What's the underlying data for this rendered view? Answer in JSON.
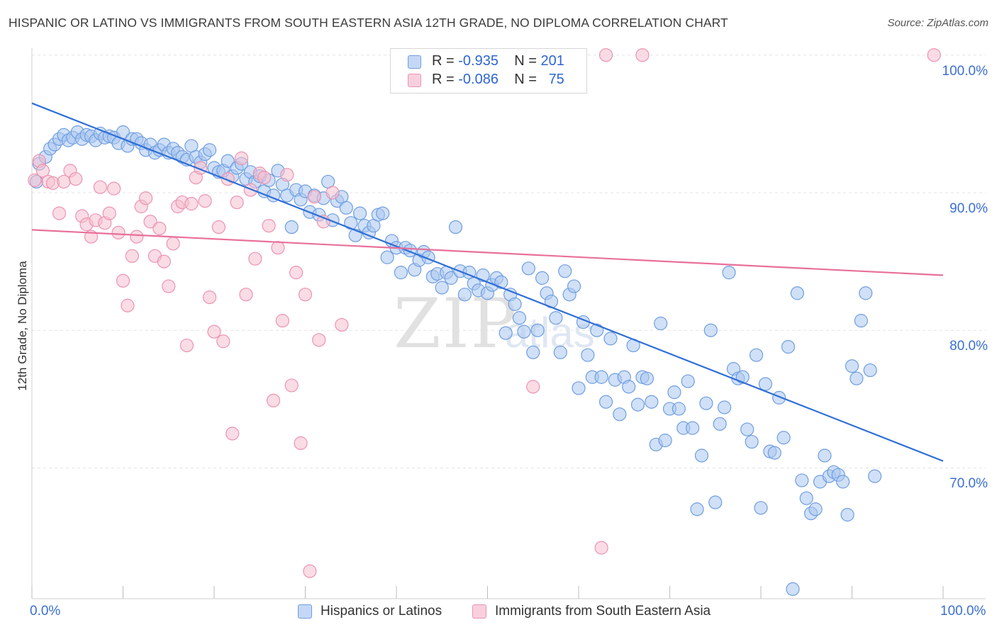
{
  "title": "HISPANIC OR LATINO VS IMMIGRANTS FROM SOUTH EASTERN ASIA 12TH GRADE, NO DIPLOMA CORRELATION CHART",
  "source": "Source: ZipAtlas.com",
  "watermark": "ZIPatlas",
  "legend_top": [
    {
      "r_label": "R =",
      "r_value": "-0.935",
      "n_label": "N =",
      "n_value": "201"
    },
    {
      "r_label": "R =",
      "r_value": "-0.086",
      "n_label": "N =",
      "n_value": "75"
    }
  ],
  "colors": {
    "blue_fill": "#a9c6f0",
    "blue_stroke": "#6f9ee0",
    "blue_line": "#2f6fd6",
    "pink_fill": "#f5bfd0",
    "pink_stroke": "#ec93b0",
    "pink_line": "#e8709a",
    "axis_text": "#3b6fd0",
    "grid": "#e4e4e4"
  },
  "chart_data": {
    "type": "scatter",
    "xlabel": "",
    "ylabel": "12th Grade, No Diploma",
    "x_tick_labels": [
      "0.0%",
      "100.0%"
    ],
    "y_tick_labels": [
      "100.0%",
      "90.0%",
      "80.0%",
      "70.0%"
    ],
    "y_ticks": [
      100,
      90,
      80,
      70
    ],
    "xlim": [
      0,
      100
    ],
    "ylim": [
      60.5,
      100.5
    ],
    "grid": true,
    "legend_position": "bottom",
    "series": [
      {
        "name": "Hispanics or Latinos",
        "color": "#a9c6f0",
        "trend": {
          "x": [
            0,
            100
          ],
          "y": [
            96.5,
            70.5
          ]
        },
        "points": [
          [
            0.5,
            90.8
          ],
          [
            0.8,
            92.1
          ],
          [
            1.5,
            92.6
          ],
          [
            2.0,
            93.2
          ],
          [
            2.5,
            93.5
          ],
          [
            3.0,
            93.9
          ],
          [
            3.5,
            94.2
          ],
          [
            4.0,
            93.8
          ],
          [
            4.5,
            94.0
          ],
          [
            5.0,
            94.4
          ],
          [
            5.5,
            93.9
          ],
          [
            6.0,
            94.2
          ],
          [
            6.5,
            94.1
          ],
          [
            7.0,
            93.8
          ],
          [
            7.5,
            94.3
          ],
          [
            8.0,
            94.0
          ],
          [
            8.5,
            94.1
          ],
          [
            9.0,
            94.0
          ],
          [
            9.5,
            93.6
          ],
          [
            10.0,
            94.4
          ],
          [
            10.5,
            93.4
          ],
          [
            11.0,
            93.9
          ],
          [
            11.5,
            93.9
          ],
          [
            12.0,
            93.6
          ],
          [
            12.5,
            93.1
          ],
          [
            13.0,
            93.5
          ],
          [
            13.5,
            92.9
          ],
          [
            14.0,
            93.1
          ],
          [
            14.5,
            93.5
          ],
          [
            15.0,
            92.9
          ],
          [
            15.5,
            93.2
          ],
          [
            16.0,
            92.9
          ],
          [
            16.5,
            92.6
          ],
          [
            17.0,
            92.4
          ],
          [
            17.5,
            93.4
          ],
          [
            18.0,
            92.6
          ],
          [
            18.5,
            92.2
          ],
          [
            19.0,
            92.8
          ],
          [
            19.5,
            93.1
          ],
          [
            20.0,
            91.8
          ],
          [
            20.5,
            91.5
          ],
          [
            21.0,
            91.6
          ],
          [
            21.5,
            92.3
          ],
          [
            22.0,
            91.2
          ],
          [
            22.5,
            91.8
          ],
          [
            23.0,
            92.1
          ],
          [
            23.5,
            91.0
          ],
          [
            24.0,
            91.5
          ],
          [
            24.5,
            90.8
          ],
          [
            25.0,
            91.2
          ],
          [
            25.5,
            90.1
          ],
          [
            26.0,
            90.9
          ],
          [
            26.5,
            89.8
          ],
          [
            27.0,
            91.6
          ],
          [
            27.5,
            90.6
          ],
          [
            28.0,
            89.8
          ],
          [
            28.5,
            87.5
          ],
          [
            29.0,
            90.2
          ],
          [
            29.5,
            89.5
          ],
          [
            30.0,
            90.1
          ],
          [
            30.5,
            88.6
          ],
          [
            31.0,
            89.8
          ],
          [
            31.5,
            88.4
          ],
          [
            32.0,
            89.6
          ],
          [
            32.5,
            90.8
          ],
          [
            33.0,
            88.0
          ],
          [
            33.5,
            89.4
          ],
          [
            34.0,
            89.7
          ],
          [
            34.5,
            88.9
          ],
          [
            35.0,
            87.8
          ],
          [
            35.5,
            86.9
          ],
          [
            36.0,
            88.5
          ],
          [
            36.5,
            87.6
          ],
          [
            37.0,
            87.1
          ],
          [
            37.5,
            87.6
          ],
          [
            38.0,
            88.4
          ],
          [
            38.5,
            88.5
          ],
          [
            39.0,
            85.3
          ],
          [
            39.5,
            86.5
          ],
          [
            40.0,
            86.0
          ],
          [
            40.5,
            84.2
          ],
          [
            41.0,
            86.0
          ],
          [
            41.5,
            85.8
          ],
          [
            42.0,
            84.4
          ],
          [
            42.5,
            85.1
          ],
          [
            43.0,
            85.7
          ],
          [
            43.5,
            85.3
          ],
          [
            44.0,
            83.9
          ],
          [
            44.5,
            84.1
          ],
          [
            45.0,
            83.1
          ],
          [
            45.5,
            84.2
          ],
          [
            46.0,
            83.8
          ],
          [
            46.5,
            87.5
          ],
          [
            47.0,
            84.3
          ],
          [
            47.5,
            82.6
          ],
          [
            48.0,
            84.2
          ],
          [
            48.5,
            83.4
          ],
          [
            49.0,
            82.9
          ],
          [
            49.5,
            84.0
          ],
          [
            50.0,
            82.7
          ],
          [
            50.5,
            83.3
          ],
          [
            51.0,
            83.8
          ],
          [
            51.5,
            83.5
          ],
          [
            52.0,
            79.8
          ],
          [
            52.5,
            82.6
          ],
          [
            53.0,
            81.9
          ],
          [
            53.5,
            80.9
          ],
          [
            54.0,
            79.9
          ],
          [
            54.5,
            84.5
          ],
          [
            55.0,
            78.4
          ],
          [
            55.5,
            80.0
          ],
          [
            56.0,
            83.8
          ],
          [
            56.5,
            82.7
          ],
          [
            57.0,
            82.1
          ],
          [
            57.5,
            80.9
          ],
          [
            58.0,
            78.4
          ],
          [
            58.5,
            84.3
          ],
          [
            59.0,
            82.6
          ],
          [
            59.5,
            83.2
          ],
          [
            60.0,
            75.8
          ],
          [
            60.5,
            80.6
          ],
          [
            61.0,
            78.2
          ],
          [
            61.5,
            76.6
          ],
          [
            62.0,
            80.0
          ],
          [
            62.5,
            76.6
          ],
          [
            63.0,
            74.8
          ],
          [
            63.5,
            79.4
          ],
          [
            64.0,
            76.4
          ],
          [
            64.5,
            73.9
          ],
          [
            65.0,
            76.6
          ],
          [
            65.5,
            75.9
          ],
          [
            66.0,
            78.9
          ],
          [
            66.5,
            74.6
          ],
          [
            67.0,
            76.6
          ],
          [
            67.5,
            76.5
          ],
          [
            68.0,
            74.8
          ],
          [
            68.5,
            71.7
          ],
          [
            69.0,
            80.5
          ],
          [
            69.5,
            72.0
          ],
          [
            70.0,
            74.3
          ],
          [
            70.5,
            75.5
          ],
          [
            71.0,
            74.3
          ],
          [
            71.5,
            72.9
          ],
          [
            72.0,
            76.3
          ],
          [
            72.5,
            72.9
          ],
          [
            73.0,
            67.0
          ],
          [
            73.5,
            70.9
          ],
          [
            74.0,
            74.7
          ],
          [
            74.5,
            80.0
          ],
          [
            75.0,
            67.5
          ],
          [
            75.5,
            73.2
          ],
          [
            76.0,
            74.4
          ],
          [
            76.5,
            84.2
          ],
          [
            77.0,
            77.2
          ],
          [
            77.5,
            76.5
          ],
          [
            78.0,
            76.6
          ],
          [
            78.5,
            72.8
          ],
          [
            79.0,
            71.9
          ],
          [
            79.5,
            78.2
          ],
          [
            80.0,
            67.1
          ],
          [
            80.5,
            76.1
          ],
          [
            81.0,
            71.2
          ],
          [
            81.5,
            71.1
          ],
          [
            82.0,
            75.1
          ],
          [
            82.5,
            72.2
          ],
          [
            83.0,
            78.8
          ],
          [
            83.5,
            61.2
          ],
          [
            84.0,
            82.7
          ],
          [
            84.5,
            69.1
          ],
          [
            85.0,
            67.8
          ],
          [
            85.5,
            66.7
          ],
          [
            86.0,
            67.0
          ],
          [
            86.5,
            69.0
          ],
          [
            87.0,
            70.9
          ],
          [
            87.5,
            69.4
          ],
          [
            88.0,
            69.7
          ],
          [
            88.5,
            69.5
          ],
          [
            89.0,
            69.0
          ],
          [
            89.5,
            66.6
          ],
          [
            90.0,
            77.4
          ],
          [
            90.5,
            76.5
          ],
          [
            91.0,
            80.7
          ],
          [
            91.5,
            82.7
          ],
          [
            92.0,
            77.1
          ],
          [
            92.5,
            69.4
          ]
        ]
      },
      {
        "name": "Immigrants from South Eastern Asia",
        "color": "#f5bfd0",
        "trend": {
          "x": [
            0,
            100
          ],
          "y": [
            87.3,
            84.0
          ]
        },
        "points": [
          [
            0.3,
            90.9
          ],
          [
            0.8,
            92.3
          ],
          [
            1.2,
            91.6
          ],
          [
            1.8,
            90.8
          ],
          [
            2.3,
            90.7
          ],
          [
            3.0,
            88.5
          ],
          [
            3.5,
            90.8
          ],
          [
            4.2,
            91.6
          ],
          [
            4.8,
            91.0
          ],
          [
            5.5,
            88.3
          ],
          [
            6.0,
            87.7
          ],
          [
            6.5,
            86.8
          ],
          [
            7.0,
            88.0
          ],
          [
            7.5,
            90.4
          ],
          [
            8.0,
            87.8
          ],
          [
            8.5,
            88.5
          ],
          [
            9.0,
            90.3
          ],
          [
            9.5,
            87.1
          ],
          [
            10.0,
            83.6
          ],
          [
            10.5,
            81.8
          ],
          [
            11.0,
            85.4
          ],
          [
            11.5,
            86.8
          ],
          [
            12.0,
            89.0
          ],
          [
            12.5,
            89.6
          ],
          [
            13.0,
            87.9
          ],
          [
            13.5,
            85.4
          ],
          [
            14.0,
            87.4
          ],
          [
            14.5,
            85.0
          ],
          [
            15.0,
            83.2
          ],
          [
            15.5,
            86.3
          ],
          [
            16.0,
            89.0
          ],
          [
            16.5,
            89.3
          ],
          [
            17.0,
            78.9
          ],
          [
            17.5,
            89.2
          ],
          [
            18.0,
            91.1
          ],
          [
            18.5,
            91.8
          ],
          [
            19.0,
            89.4
          ],
          [
            19.5,
            82.4
          ],
          [
            20.0,
            79.9
          ],
          [
            20.5,
            87.5
          ],
          [
            21.0,
            79.2
          ],
          [
            21.5,
            91.0
          ],
          [
            22.0,
            72.5
          ],
          [
            22.5,
            89.3
          ],
          [
            23.0,
            92.5
          ],
          [
            23.5,
            82.6
          ],
          [
            24.0,
            90.2
          ],
          [
            24.5,
            85.2
          ],
          [
            25.0,
            91.4
          ],
          [
            25.5,
            91.1
          ],
          [
            26.0,
            87.6
          ],
          [
            26.5,
            74.9
          ],
          [
            27.0,
            86.0
          ],
          [
            27.5,
            80.7
          ],
          [
            28.0,
            91.3
          ],
          [
            28.5,
            76.0
          ],
          [
            29.0,
            84.2
          ],
          [
            29.5,
            71.8
          ],
          [
            30.0,
            82.6
          ],
          [
            30.5,
            62.5
          ],
          [
            31.0,
            89.7
          ],
          [
            31.5,
            79.3
          ],
          [
            32.0,
            87.9
          ],
          [
            33.0,
            90.0
          ],
          [
            34.0,
            80.4
          ],
          [
            55.0,
            75.9
          ],
          [
            62.5,
            64.2
          ],
          [
            63.0,
            100.0
          ],
          [
            67.0,
            100.0
          ],
          [
            99.0,
            100.0
          ]
        ]
      }
    ]
  }
}
